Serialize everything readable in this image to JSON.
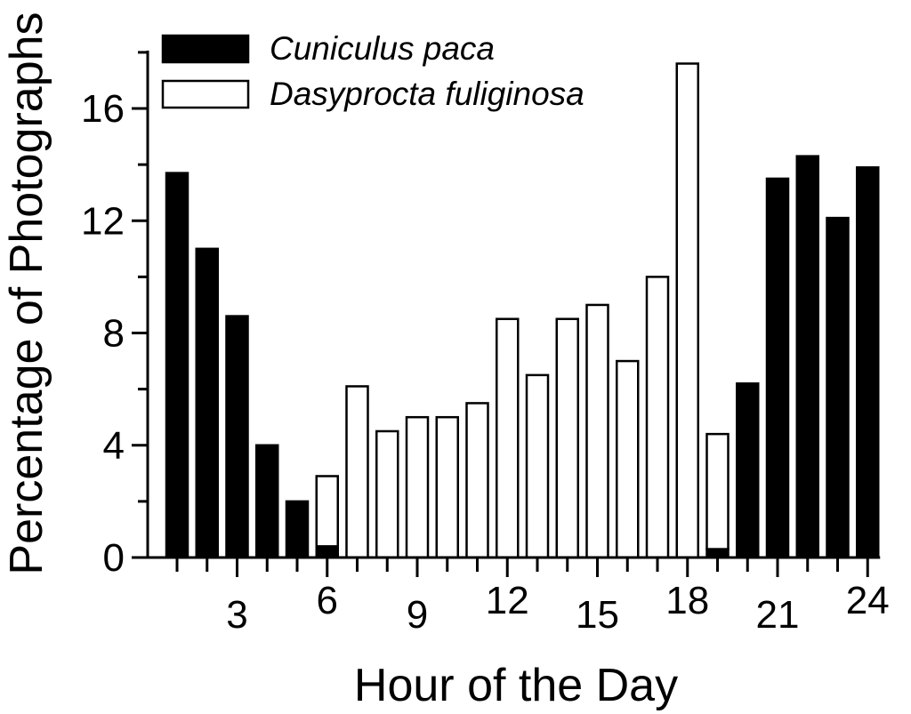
{
  "chart_data": {
    "type": "bar",
    "xlabel": "Hour of the Day",
    "ylabel": "Percentage of Photographs",
    "ylim": [
      0,
      18
    ],
    "yticks": [
      0,
      4,
      8,
      12,
      16
    ],
    "xlim": [
      0.5,
      24.5
    ],
    "xticks": [
      3,
      6,
      9,
      12,
      15,
      18,
      21,
      24
    ],
    "x": [
      1,
      2,
      3,
      4,
      5,
      6,
      7,
      8,
      9,
      10,
      11,
      12,
      13,
      14,
      15,
      16,
      17,
      18,
      19,
      20,
      21,
      22,
      23,
      24
    ],
    "stacked": true,
    "legend_position": "top-left",
    "grid": false,
    "series": [
      {
        "name": "Cuniculus paca",
        "color": "#000000",
        "values": [
          13.7,
          11.0,
          8.6,
          4.0,
          2.0,
          0.4,
          0,
          0,
          0,
          0,
          0,
          0,
          0,
          0,
          0,
          0,
          0,
          0,
          0.3,
          6.2,
          13.5,
          14.3,
          12.1,
          13.9
        ]
      },
      {
        "name": "Dasyprocta fuliginosa",
        "color": "#ffffff",
        "values": [
          0,
          0,
          0,
          0,
          0,
          2.5,
          6.1,
          4.5,
          5.0,
          5.0,
          5.5,
          8.5,
          6.5,
          8.5,
          9.0,
          7.0,
          10.0,
          17.6,
          4.1,
          0,
          0,
          0,
          0,
          0
        ]
      }
    ]
  }
}
